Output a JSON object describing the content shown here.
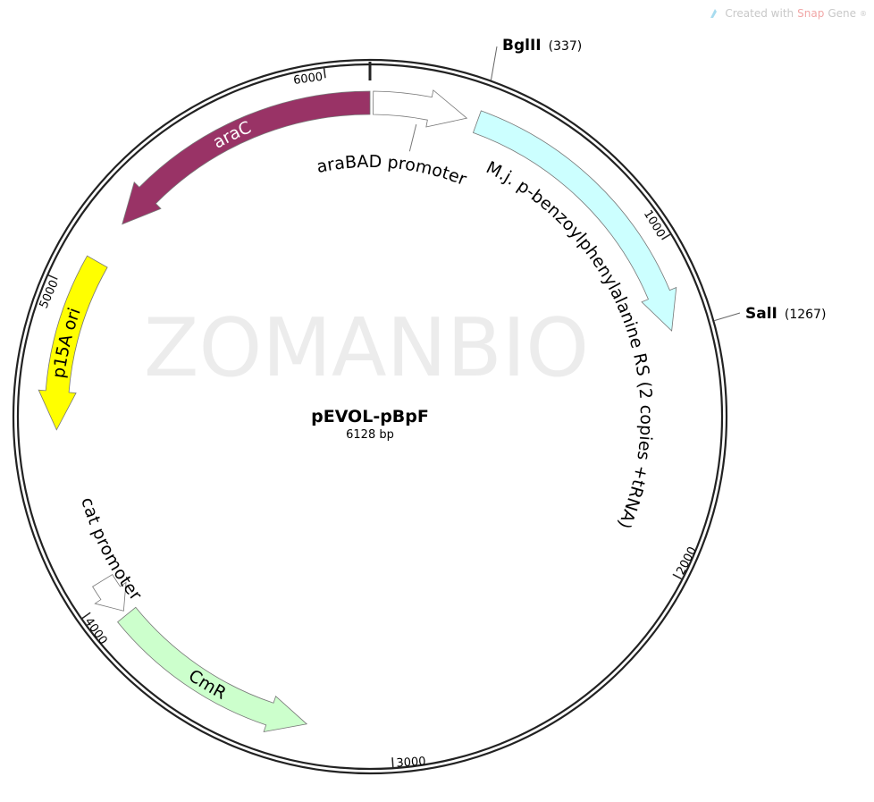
{
  "credit": {
    "prefix": "Created with ",
    "brand_a": "Snap",
    "brand_b": "Gene",
    "reg": "®",
    "icon": "snapgene-logo-icon"
  },
  "watermark": "ZOMANBIO",
  "plasmid": {
    "name": "pEVOL-pBpF",
    "length_label": "6128 bp",
    "length": 6128
  },
  "ticks": [
    {
      "bp": 1000,
      "label": "1000"
    },
    {
      "bp": 2000,
      "label": "2000"
    },
    {
      "bp": 3000,
      "label": "3000"
    },
    {
      "bp": 4000,
      "label": "4000"
    },
    {
      "bp": 5000,
      "label": "5000"
    },
    {
      "bp": 6000,
      "label": "6000"
    }
  ],
  "sites": [
    {
      "name": "BglII",
      "position": "(337)",
      "bp": 337
    },
    {
      "name": "SalI",
      "position": "(1267)",
      "bp": 1267
    }
  ],
  "features": [
    {
      "label": "araC",
      "start": 5240,
      "end": 6128,
      "direction": "reverse",
      "color": "#993366",
      "label_color": "#ffffff",
      "label_mode": "inside"
    },
    {
      "label": "araBAD promoter",
      "start": 10,
      "end": 306,
      "direction": "forward",
      "color": "#ffffff",
      "label_color": "#000000",
      "label_mode": "outside-top"
    },
    {
      "label": "M.j. p-benzoylphenylalanine RS (2 copies +tRNA)",
      "start": 340,
      "end": 1262,
      "direction": "forward",
      "color": "#ccffff",
      "label_color": "#000000",
      "label_mode": "long"
    },
    {
      "label": "p15A ori",
      "start": 4555,
      "end": 5100,
      "direction": "reverse",
      "color": "#ffff00",
      "label_color": "#000000",
      "label_mode": "inside"
    },
    {
      "label": "cat promoter",
      "start": 3945,
      "end": 4060,
      "direction": "reverse",
      "color": "#ffffff",
      "label_color": "#000000",
      "label_mode": "outside-bottom"
    },
    {
      "label": "CmR",
      "start": 3262,
      "end": 3930,
      "direction": "reverse",
      "color": "#ccffcc",
      "label_color": "#000000",
      "label_mode": "inside"
    }
  ]
}
